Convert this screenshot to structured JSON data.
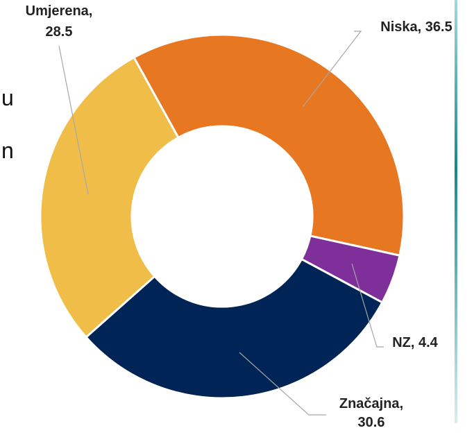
{
  "chart_data": {
    "type": "donut",
    "categories": [
      "Niska",
      "NZ",
      "Značajna",
      "Umjerena"
    ],
    "values": [
      36.5,
      4.4,
      30.6,
      28.5
    ],
    "colors": [
      "#e87722",
      "#7e2f9a",
      "#002456",
      "#f0be48"
    ]
  },
  "side_text": [
    "u",
    "n"
  ]
}
